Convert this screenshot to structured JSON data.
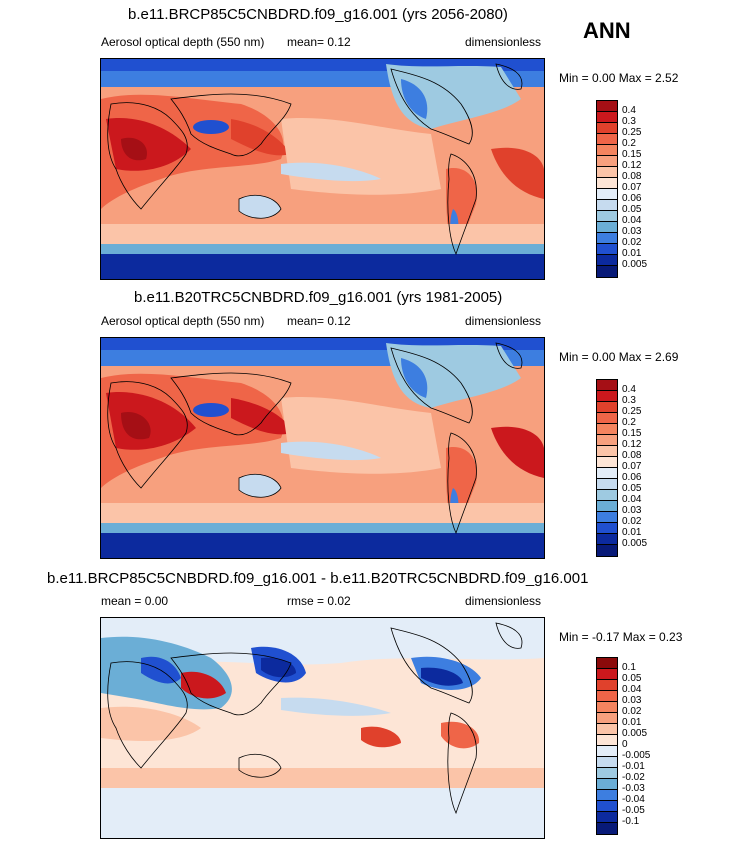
{
  "season": "ANN",
  "panels": [
    {
      "title": "b.e11.BRCP85C5CNBDRD.f09_g16.001 (yrs 2056-2080)",
      "variable": "Aerosol optical depth (550 nm)",
      "mean": "mean=  0.12",
      "units": "dimensionless",
      "minmax": "Min =   0.00 Max =   2.52",
      "levels": [
        "0.4",
        "0.3",
        "0.25",
        "0.2",
        "0.15",
        "0.12",
        "0.08",
        "0.07",
        "0.06",
        "0.05",
        "0.04",
        "0.03",
        "0.02",
        "0.01",
        "0.005"
      ],
      "colors": [
        "#a50f15",
        "#cb181d",
        "#e0412c",
        "#ef6548",
        "#f4845f",
        "#f7a07e",
        "#fbc4a8",
        "#fde5d6",
        "#e3edf8",
        "#c6dbef",
        "#9ecae1",
        "#6baed6",
        "#3d7ee0",
        "#2050d0",
        "#0c2a9e",
        "#081a78"
      ]
    },
    {
      "title": "b.e11.B20TRC5CNBDRD.f09_g16.001 (yrs 1981-2005)",
      "variable": "Aerosol optical depth (550 nm)",
      "mean": "mean=  0.12",
      "units": "dimensionless",
      "minmax": "Min =   0.00 Max =   2.69",
      "levels": [
        "0.4",
        "0.3",
        "0.25",
        "0.2",
        "0.15",
        "0.12",
        "0.08",
        "0.07",
        "0.06",
        "0.05",
        "0.04",
        "0.03",
        "0.02",
        "0.01",
        "0.005"
      ],
      "colors": [
        "#a50f15",
        "#cb181d",
        "#e0412c",
        "#ef6548",
        "#f4845f",
        "#f7a07e",
        "#fbc4a8",
        "#fde5d6",
        "#e3edf8",
        "#c6dbef",
        "#9ecae1",
        "#6baed6",
        "#3d7ee0",
        "#2050d0",
        "#0c2a9e",
        "#081a78"
      ]
    },
    {
      "title": "b.e11.BRCP85C5CNBDRD.f09_g16.001 - b.e11.B20TRC5CNBDRD.f09_g16.001",
      "mean": "mean =   0.00",
      "rmse": "rmse =  0.02",
      "units": "dimensionless",
      "minmax": "Min =  -0.17 Max =   0.23",
      "levels": [
        "0.1",
        "0.05",
        "0.04",
        "0.03",
        "0.02",
        "0.01",
        "0.005",
        "0",
        "-0.005",
        "-0.01",
        "-0.02",
        "-0.03",
        "-0.04",
        "-0.05",
        "-0.1"
      ],
      "colors": [
        "#8b0a0a",
        "#cb181d",
        "#e0412c",
        "#ef6548",
        "#f4845f",
        "#f7a07e",
        "#fbc4a8",
        "#fde5d6",
        "#e3edf8",
        "#c6dbef",
        "#9ecae1",
        "#6baed6",
        "#3d7ee0",
        "#2050d0",
        "#0c2a9e",
        "#081a78"
      ]
    }
  ]
}
